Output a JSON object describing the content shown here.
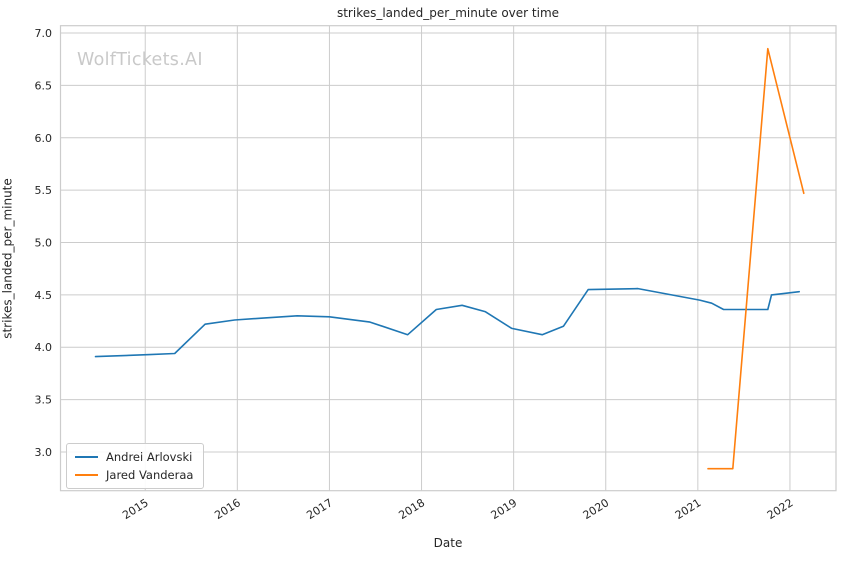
{
  "figure": {
    "title": "strikes_landed_per_minute over time",
    "xlabel": "Date",
    "ylabel": "strikes_landed_per_minute",
    "watermark": "WolfTickets.AI"
  },
  "legend": {
    "items": [
      {
        "label": "Andrei Arlovski",
        "color": "#1f77b4"
      },
      {
        "label": "Jared Vanderaa",
        "color": "#ff7f0e"
      }
    ]
  },
  "chart_data": {
    "type": "line",
    "title": "strikes_landed_per_minute over time",
    "xlabel": "Date",
    "ylabel": "strikes_landed_per_minute",
    "grid": true,
    "legend_position": "lower left",
    "xlim": [
      2014.08,
      2022.5
    ],
    "ylim": [
      2.63,
      7.07
    ],
    "x_ticks": [
      2015,
      2016,
      2017,
      2018,
      2019,
      2020,
      2021,
      2022
    ],
    "x_tick_labels": [
      "2015",
      "2016",
      "2017",
      "2018",
      "2019",
      "2020",
      "2021",
      "2022"
    ],
    "y_ticks": [
      3.0,
      3.5,
      4.0,
      4.5,
      5.0,
      5.5,
      6.0,
      6.5,
      7.0
    ],
    "y_tick_labels": [
      "3.0",
      "3.5",
      "4.0",
      "4.5",
      "5.0",
      "5.5",
      "6.0",
      "6.5",
      "7.0"
    ],
    "series": [
      {
        "name": "Andrei Arlovski",
        "color": "#1f77b4",
        "x": [
          2014.46,
          2015.05,
          2015.32,
          2015.65,
          2015.97,
          2016.3,
          2016.65,
          2017.0,
          2017.44,
          2017.85,
          2018.16,
          2018.44,
          2018.69,
          2018.98,
          2019.31,
          2019.54,
          2019.81,
          2020.35,
          2021.02,
          2021.15,
          2021.28,
          2021.76,
          2021.8,
          2022.1
        ],
        "y": [
          3.91,
          3.93,
          3.94,
          4.22,
          4.26,
          4.28,
          4.3,
          4.29,
          4.24,
          4.12,
          4.36,
          4.4,
          4.34,
          4.18,
          4.12,
          4.2,
          4.55,
          4.56,
          4.45,
          4.42,
          4.36,
          4.36,
          4.5,
          4.53
        ]
      },
      {
        "name": "Jared Vanderaa",
        "color": "#ff7f0e",
        "x": [
          2021.11,
          2021.38,
          2021.76,
          2022.15
        ],
        "y": [
          2.84,
          2.84,
          6.85,
          5.47
        ]
      }
    ]
  }
}
